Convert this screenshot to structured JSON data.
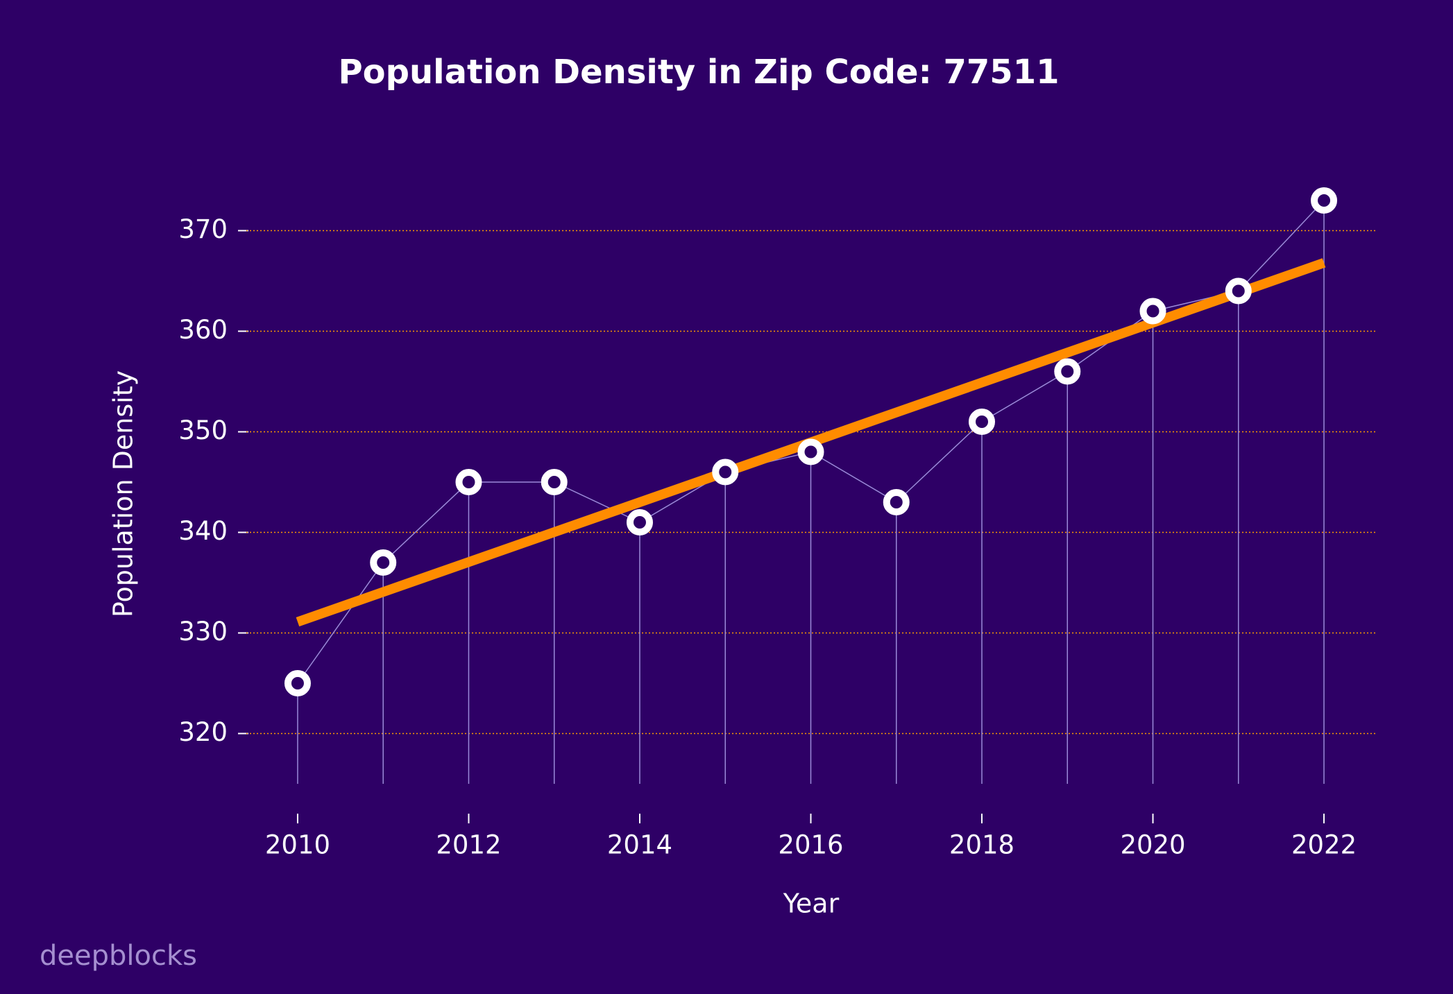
{
  "chart_data": {
    "type": "line",
    "title": "Population Density in Zip Code: 77511",
    "x_label": "Year",
    "y_label": "Population Density",
    "x": [
      2010,
      2011,
      2012,
      2013,
      2014,
      2015,
      2016,
      2017,
      2018,
      2019,
      2020,
      2021,
      2022
    ],
    "series": [
      {
        "color": "#9b8bd9",
        "marker_color": "#ffffff",
        "values": [
          325,
          337,
          345,
          345,
          341,
          346,
          348,
          343,
          351,
          356,
          362,
          364,
          373
        ]
      }
    ],
    "trend": {
      "color": "#ff8c00",
      "x": [
        2010,
        2022
      ],
      "values": [
        331.1,
        366.8
      ]
    },
    "xlim": [
      2009.4,
      2022.6
    ],
    "xticks": [
      2010,
      2012,
      2014,
      2016,
      2018,
      2020,
      2022
    ],
    "ylim": [
      315,
      375
    ],
    "yticks": [
      320,
      330,
      340,
      350,
      360,
      370
    ],
    "grid": true,
    "grid_color": "#ff9900",
    "watermark": "deepblocks"
  }
}
